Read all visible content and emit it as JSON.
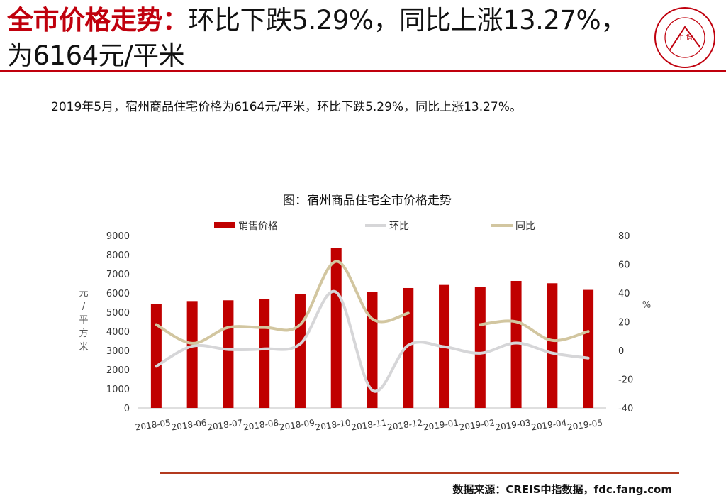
{
  "header": {
    "title_highlight": "全市价格走势：",
    "title_rest": "环比下跌5.29%，同比上涨13.27%，为6164元/平米"
  },
  "logo": {
    "center_text": "中 指",
    "ring_text_cn": "中国指数研究院",
    "ring_text_en": "CHINA INDEX ACADEMY"
  },
  "summary": "2019年5月，宿州商品住宅价格为6164元/平米，环比下跌5.29%，同比上涨13.27%。",
  "footer": {
    "source": "数据来源：CREIS中指数据，fdc.fang.com"
  },
  "colors": {
    "accent": "#c0000d",
    "bar": "#c00000",
    "mom": "#d6d6d8",
    "yoy": "#d2c6a0",
    "rule": "#b33a1f"
  },
  "chart_data": {
    "type": "bar",
    "title": "图：宿州商品住宅全市价格走势",
    "categories": [
      "2018-05",
      "2018-06",
      "2018-07",
      "2018-08",
      "2018-09",
      "2018-10",
      "2018-11",
      "2018-12",
      "2019-01",
      "2019-02",
      "2019-03",
      "2019-04",
      "2019-05"
    ],
    "ylabel_left": "元/平方米",
    "ylabel_right": "%",
    "ylim_left": [
      0,
      9000
    ],
    "ylim_right": [
      -40,
      80
    ],
    "yticks_left": [
      "9000",
      "8000",
      "7000",
      "6000",
      "5000",
      "4000",
      "3000",
      "2000",
      "1000",
      "0"
    ],
    "yticks_right": [
      "80",
      "60",
      "40",
      "20",
      "0",
      "-20",
      "-40"
    ],
    "legend_position": "top",
    "series": [
      {
        "name": "销售价格",
        "type": "bar",
        "axis": "left",
        "values": [
          5420,
          5580,
          5620,
          5680,
          5940,
          8350,
          6040,
          6260,
          6420,
          6300,
          6630,
          6508,
          6164
        ]
      },
      {
        "name": "环比",
        "type": "line",
        "axis": "right",
        "values": [
          -11,
          3,
          0.7,
          1.1,
          4.6,
          40.6,
          -27.7,
          3.6,
          2.6,
          -1.9,
          5.2,
          -1.8,
          -5.29
        ]
      },
      {
        "name": "同比",
        "type": "line",
        "axis": "right",
        "values": [
          18,
          5,
          16,
          16,
          18,
          62,
          22,
          26,
          null,
          18,
          20,
          7,
          13.27
        ]
      }
    ]
  }
}
